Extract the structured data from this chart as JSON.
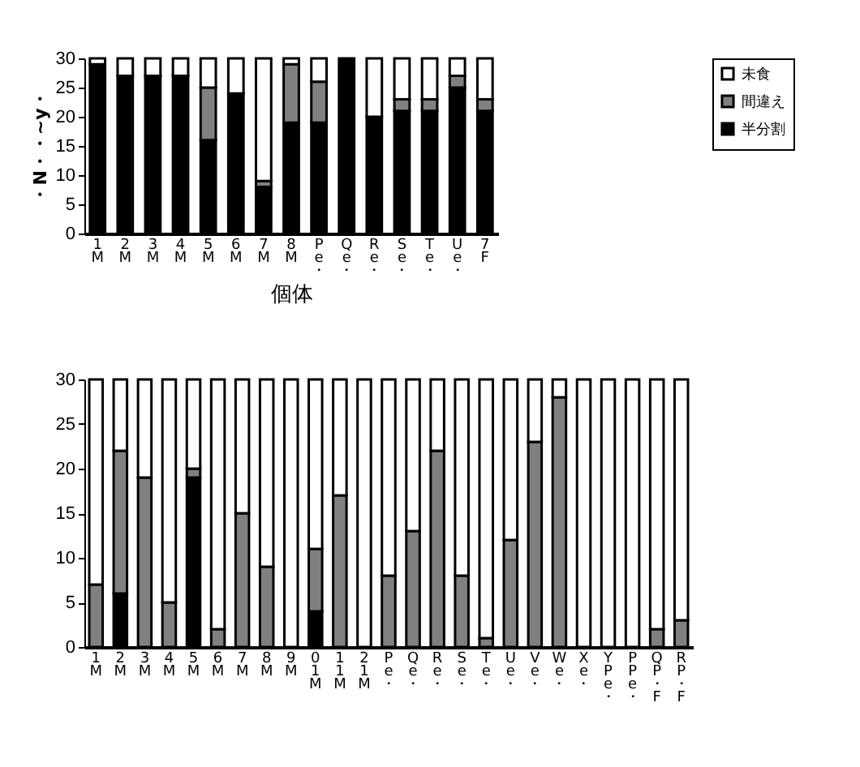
{
  "chart_data": [
    {
      "type": "bar",
      "stacked": true,
      "xlabel": "個体",
      "ylabel": "・N・・~y・",
      "legend": "right",
      "categories": [
        "1M",
        "2M",
        "3M",
        "4M",
        "5M",
        "6M",
        "7M",
        "8M",
        "Pe・",
        "Qe・",
        "Re・",
        "Se・",
        "Te・",
        "Ue・",
        "7F"
      ],
      "ylim": [
        0,
        30
      ],
      "yticks": [
        0,
        5,
        10,
        15,
        20,
        25,
        30
      ],
      "series": [
        {
          "name": "半分割",
          "color": "#000000",
          "values": [
            29,
            27,
            27,
            27,
            16,
            24,
            8,
            19,
            19,
            30,
            20,
            21,
            21,
            25,
            21
          ]
        },
        {
          "name": "間違え",
          "color": "#808080",
          "values": [
            0,
            0,
            0,
            0,
            9,
            0,
            1,
            10,
            7,
            0,
            0,
            2,
            2,
            2,
            2
          ]
        },
        {
          "name": "未食",
          "color": "#ffffff",
          "values": [
            1,
            3,
            3,
            3,
            5,
            6,
            21,
            1,
            4,
            0,
            10,
            7,
            7,
            3,
            7
          ]
        }
      ]
    },
    {
      "type": "bar",
      "stacked": true,
      "categories": [
        "1M",
        "2M",
        "3M",
        "4M",
        "5M",
        "6M",
        "7M",
        "8M",
        "9M",
        "01M",
        "11M",
        "21M",
        "Pe・",
        "Qe・",
        "Re・",
        "Se・",
        "Te・",
        "Ue・",
        "Ve・",
        "We・",
        "Xe・",
        "YPe・",
        "PPe・",
        "QP・F",
        "RP・F"
      ],
      "ylim": [
        0,
        30
      ],
      "yticks": [
        0,
        5,
        10,
        15,
        20,
        25,
        30
      ],
      "series": [
        {
          "color": "#000000",
          "values": [
            0,
            6,
            0,
            0,
            19,
            0,
            0,
            0,
            0,
            4,
            0,
            0,
            0,
            0,
            0,
            0,
            0,
            0,
            0,
            0,
            0,
            0,
            0,
            0,
            0
          ]
        },
        {
          "color": "#808080",
          "values": [
            7,
            16,
            19,
            5,
            1,
            2,
            15,
            9,
            0,
            7,
            17,
            0,
            8,
            13,
            22,
            8,
            1,
            12,
            23,
            28,
            0,
            0,
            0,
            2,
            3
          ]
        },
        {
          "color": "#ffffff",
          "values": [
            23,
            8,
            11,
            25,
            10,
            28,
            15,
            21,
            30,
            19,
            13,
            30,
            22,
            17,
            8,
            22,
            29,
            18,
            7,
            2,
            30,
            30,
            30,
            28,
            27
          ]
        }
      ]
    }
  ]
}
